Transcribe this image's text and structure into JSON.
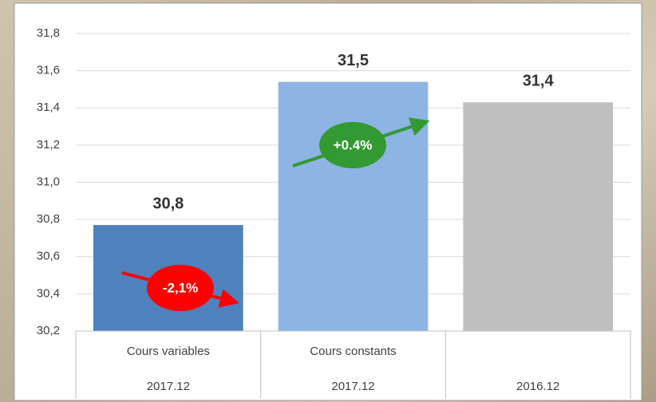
{
  "chart_data": {
    "type": "bar",
    "categories": [
      "Cours variables",
      "Cours constants",
      null
    ],
    "group_labels": [
      "2017.12",
      "2017.12",
      "2016.12"
    ],
    "values": [
      30.77,
      31.54,
      31.43
    ],
    "value_labels": [
      "30,8",
      "31,5",
      "31,4"
    ],
    "colors": [
      "#4f81bd",
      "#8db4e2",
      "#bfbfbf"
    ],
    "ylim": [
      30.2,
      31.8
    ],
    "yticks": [
      {
        "value": 30.2,
        "label": "30,2"
      },
      {
        "value": 30.4,
        "label": "30,4"
      },
      {
        "value": 30.6,
        "label": "30,6"
      },
      {
        "value": 30.8,
        "label": "30,8"
      },
      {
        "value": 31.0,
        "label": "31,0"
      },
      {
        "value": 31.2,
        "label": "31,2"
      },
      {
        "value": 31.4,
        "label": "31,4"
      },
      {
        "value": 31.6,
        "label": "31,6"
      },
      {
        "value": 31.8,
        "label": "31,8"
      }
    ],
    "grid": true,
    "annotations": [
      {
        "text": "-2,1%",
        "color": "#ff0000"
      },
      {
        "text": "+0.4%",
        "color": "#339933"
      }
    ]
  }
}
